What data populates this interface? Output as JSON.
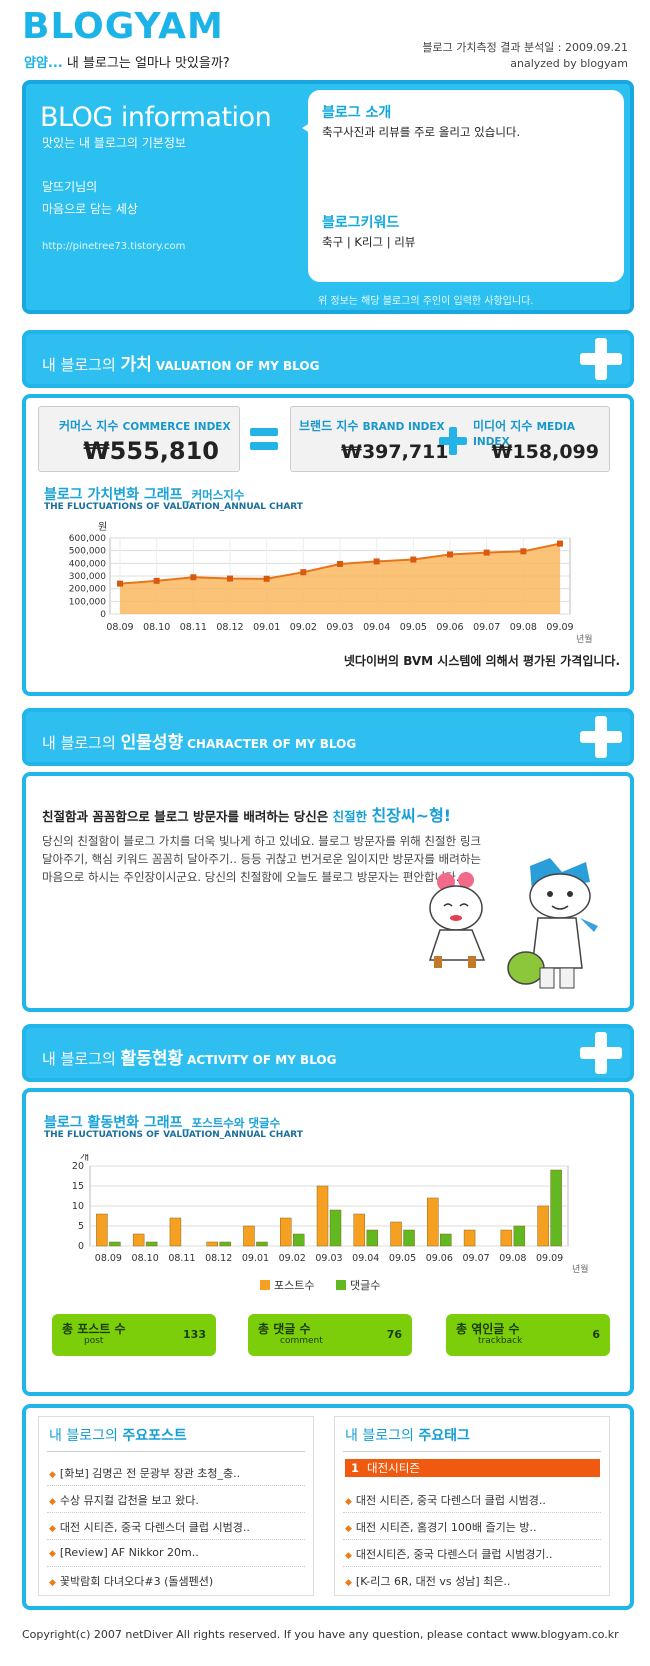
{
  "header": {
    "logo": "BLOGYAM",
    "slogan_a": "얌얌...",
    "slogan_b": "내 블로그는 얼마나 맛있을까?",
    "analysis_line": "블로그 가치측정 결과 분석일 : 2009.09.21",
    "analyzed_by": "analyzed by blogyam"
  },
  "info": {
    "title": "BLOG information",
    "subtitle": "맛있는 내 블로그의 기본정보",
    "slogan_line1": "달뜨기님의",
    "slogan_line2": "마음으로 담는 세상",
    "url": "http://pinetree73.tistory.com",
    "intro_heading": "블로그 소개",
    "intro_text": "축구사진과 리뷰를 주로 올리고 있습니다.",
    "keyword_heading": "블로그키워드",
    "keywords": "축구 | K리그 | 리뷰",
    "note": "위 정보는 해당 블로그의 주인이 입력한 사항입니다."
  },
  "valuation": {
    "section_prefix": "내 블로그의",
    "section_bold": "가치",
    "section_en": "VALUATION OF MY BLOG",
    "commerce_label": "커머스 지수",
    "commerce_en": "COMMERCE INDEX",
    "commerce_value": "₩555,810",
    "brand_label": "브랜드 지수",
    "brand_en": "BRAND INDEX",
    "brand_value": "₩397,711",
    "media_label": "미디어 지수",
    "media_en": "MEDIA INDEX",
    "media_value": "₩158,099",
    "graph_title": "블로그 가치변화 그래프_",
    "graph_title_small": "커머스지수",
    "graph_sub": "THE FLUCTUATIONS OF VALUATION_ANNUAL CHART",
    "note": "넷다이버의 BVM 시스템에 의해서 평가된 가격입니다."
  },
  "character": {
    "section_prefix": "내 블로그의",
    "section_bold": "인물성향",
    "section_en": "CHARACTER OF MY BLOG",
    "main_a": "친절함과 꼼꼼함으로 블로그 방문자를 배려하는 당신은",
    "main_b": "친절한",
    "main_c": "친장씨~형!",
    "body": "당신의 친절함이 블로그 가치를 더욱 빛나게 하고 있네요. 블로그 방문자를 위해 친절한 링크 달아주기, 핵심 키워드 꼼꼼히 달아주기.. 등등 귀찮고 번거로운 일이지만 방문자를 배려하는 마음으로 하시는 주인장이시군요. 당신의 친절함에 오늘도 블로그 방문자는 편안합니다."
  },
  "activity": {
    "section_prefix": "내 블로그의",
    "section_bold": "활동현황",
    "section_en": "ACTIVITY OF MY BLOG",
    "graph_title": "블로그 활동변화 그래프_",
    "graph_title_small": "포스트수와 댓글수",
    "graph_sub": "THE FLUCTUATIONS OF VALUATION_ANNUAL CHART",
    "total_posts_label": "총 포스트 수",
    "total_posts_en": "post",
    "total_posts": "133",
    "total_comments_label": "총 댓글 수",
    "total_comments_en": "comment",
    "total_comments": "76",
    "total_trackbacks_label": "총 엮인글 수",
    "total_trackbacks_en": "trackback",
    "total_trackbacks": "6"
  },
  "lists": {
    "posts_prefix": "내 블로그의",
    "posts_bold": "주요포스트",
    "posts": [
      "[화보] 김명곤 전 문광부 장관 초청_충..",
      "수상 뮤지컬 갑천을 보고 왔다.",
      "대전 시티즌, 중국 다렌스더 클럽 시범경..",
      "[Review] AF Nikkor 20m..",
      "꽃박람회 다녀오다#3 (돌샘펜션)"
    ],
    "tags_prefix": "내 블로그의",
    "tags_bold": "주요태그",
    "top_tag_rank": "1",
    "top_tag": "대전시티즌",
    "tags": [
      "대전 시티즌, 중국 다렌스더 클럽 시범경..",
      "대전 시티즌, 홈경기 100배 즐기는 방..",
      "대전시티즌, 중국 다렌스더 클럽 시범경기..",
      "[K-리그 6R, 대전 vs 성남] 최은.."
    ]
  },
  "footer": {
    "text": "Copyright(c) 2007 netDiver All rights reserved. If you have any question, please contact www.blogyam.co.kr"
  },
  "chart_data": [
    {
      "type": "area",
      "title": "블로그 가치변화 그래프_ 커머스지수",
      "ylabel": "원",
      "xlabel": "",
      "x_unit": "년월",
      "categories": [
        "08.09",
        "08.10",
        "08.11",
        "08.12",
        "09.01",
        "09.02",
        "09.03",
        "09.04",
        "09.05",
        "09.06",
        "09.07",
        "09.08",
        "09.09"
      ],
      "values": [
        240000,
        262000,
        290000,
        280000,
        278000,
        330000,
        395000,
        415000,
        430000,
        470000,
        485000,
        495000,
        555810
      ],
      "yticks": [
        0,
        100000,
        200000,
        300000,
        400000,
        500000,
        600000
      ],
      "ylim": [
        0,
        600000
      ],
      "grid": true,
      "color": "#f4a030"
    },
    {
      "type": "bar",
      "title": "블로그 활동변화 그래프_ 포스트수와 댓글수",
      "ylabel": "개",
      "x_unit": "년월",
      "categories": [
        "08.09",
        "08.10",
        "08.11",
        "08.12",
        "09.01",
        "09.02",
        "09.03",
        "09.04",
        "09.05",
        "09.06",
        "09.07",
        "09.08",
        "09.09"
      ],
      "series": [
        {
          "name": "포스트수",
          "color": "#f5a020",
          "values": [
            8,
            3,
            7,
            1,
            5,
            7,
            15,
            8,
            6,
            12,
            4,
            4,
            10
          ]
        },
        {
          "name": "댓글수",
          "color": "#62b820",
          "values": [
            1,
            1,
            0,
            1,
            1,
            3,
            9,
            4,
            4,
            3,
            0,
            5,
            19
          ]
        }
      ],
      "yticks": [
        0,
        5,
        10,
        15,
        20
      ],
      "ylim": [
        0,
        20
      ],
      "grid": true,
      "legend": "bottom"
    }
  ]
}
